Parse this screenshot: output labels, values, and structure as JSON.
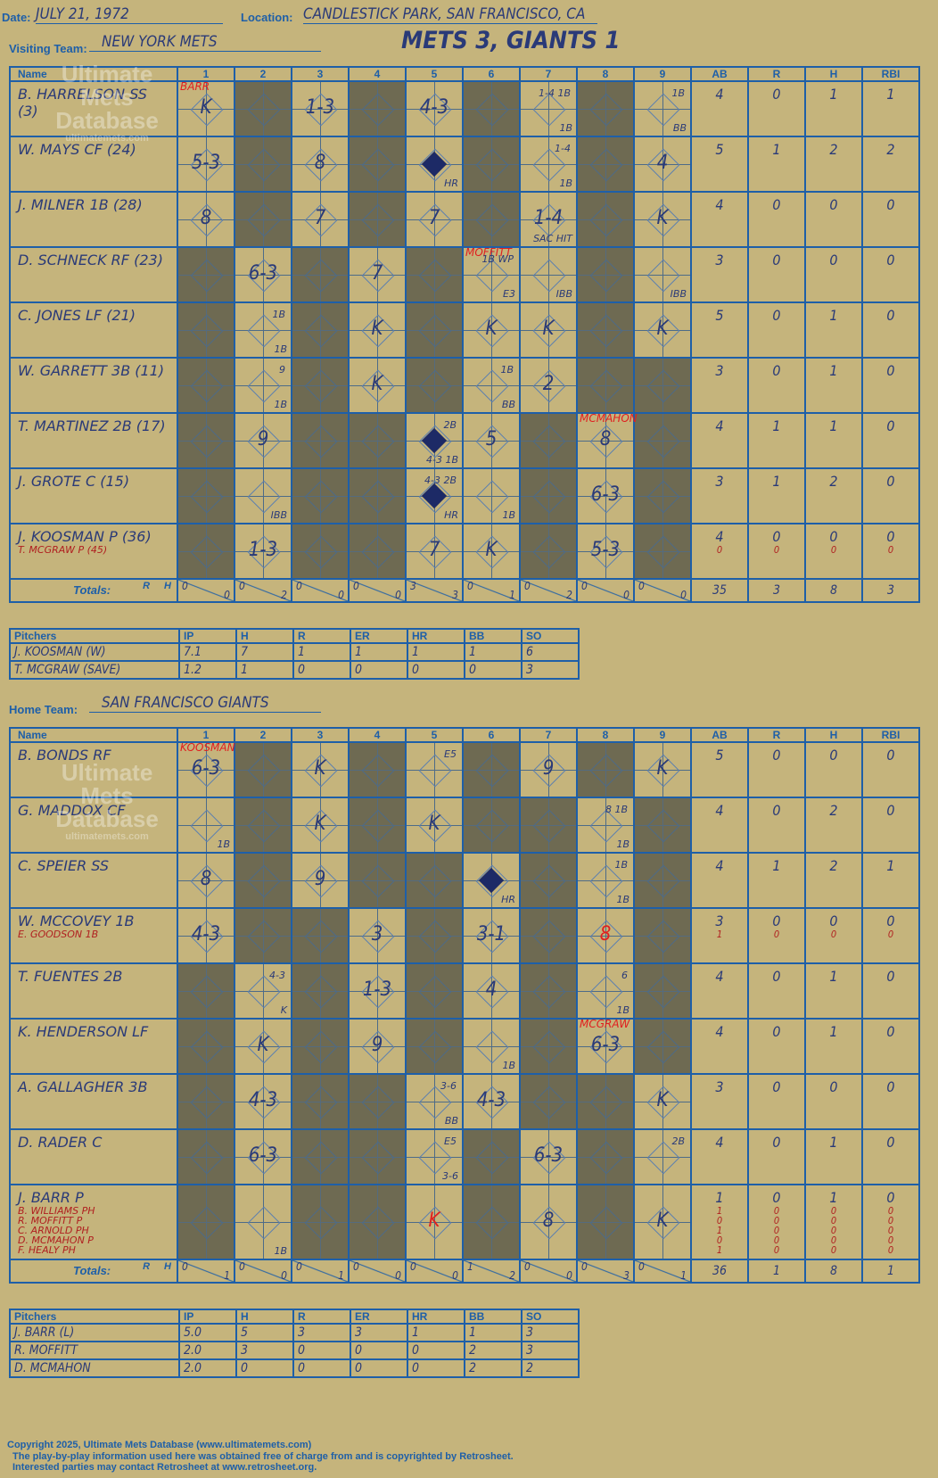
{
  "header": {
    "date_label": "Date:",
    "date": "JULY 21, 1972",
    "location_label": "Location:",
    "location": "CANDLESTICK PARK, SAN FRANCISCO, CA",
    "visiting_label": "Visiting Team:",
    "visiting_team": "NEW YORK METS",
    "score_title": "METS 3, GIANTS 1",
    "home_label": "Home Team:",
    "home_team": "SAN FRANCISCO GIANTS"
  },
  "columns": {
    "name": "Name",
    "innings": [
      "1",
      "2",
      "3",
      "4",
      "5",
      "6",
      "7",
      "8",
      "9"
    ],
    "stats": [
      "AB",
      "R",
      "H",
      "RBI"
    ]
  },
  "totals_label": "Totals:",
  "rh_labels": {
    "r": "R",
    "h": "H"
  },
  "visitors": {
    "batters": [
      {
        "name": "B. HARRELSON SS (3)",
        "sub": "",
        "stats": [
          "4",
          "0",
          "1",
          "1"
        ],
        "sub_stats": []
      },
      {
        "name": "W. MAYS CF (24)",
        "sub": "",
        "stats": [
          "5",
          "1",
          "2",
          "2"
        ],
        "sub_stats": []
      },
      {
        "name": "J. MILNER 1B (28)",
        "sub": "",
        "stats": [
          "4",
          "0",
          "0",
          "0"
        ],
        "sub_stats": []
      },
      {
        "name": "D. SCHNECK RF (23)",
        "sub": "",
        "stats": [
          "3",
          "0",
          "0",
          "0"
        ],
        "sub_stats": []
      },
      {
        "name": "C. JONES LF (21)",
        "sub": "",
        "stats": [
          "5",
          "0",
          "1",
          "0"
        ],
        "sub_stats": []
      },
      {
        "name": "W. GARRETT 3B (11)",
        "sub": "",
        "stats": [
          "3",
          "0",
          "1",
          "0"
        ],
        "sub_stats": []
      },
      {
        "name": "T. MARTINEZ 2B (17)",
        "sub": "",
        "stats": [
          "4",
          "1",
          "1",
          "0"
        ],
        "sub_stats": []
      },
      {
        "name": "J. GROTE C (15)",
        "sub": "",
        "stats": [
          "3",
          "1",
          "2",
          "0"
        ],
        "sub_stats": []
      },
      {
        "name": "J. KOOSMAN P (36)",
        "sub": "T. MCGRAW P (45)",
        "stats": [
          "4",
          "0",
          "0",
          "0"
        ],
        "sub_stats": [
          "0",
          "0",
          "0",
          "0"
        ]
      }
    ],
    "plays": [
      [
        {
          "m": "K",
          "n": "BARR"
        },
        {
          "d": 1
        },
        {
          "m": "1-3"
        },
        {
          "d": 1
        },
        {
          "m": "4-3"
        },
        {
          "d": 1
        },
        {
          "m": "",
          "t": "1-4 1B",
          "b": "1B"
        },
        {
          "d": 1
        },
        {
          "m": "",
          "t": "1B",
          "b": "BB"
        }
      ],
      [
        {
          "m": "5-3"
        },
        {
          "d": 1
        },
        {
          "m": "8"
        },
        {
          "d": 1
        },
        {
          "m": "",
          "run": 1,
          "b": "HR"
        },
        {
          "d": 1
        },
        {
          "m": "",
          "t": "1-4",
          "b": "1B"
        },
        {
          "d": 1
        },
        {
          "m": "4"
        }
      ],
      [
        {
          "m": "8"
        },
        {
          "d": 1
        },
        {
          "m": "7"
        },
        {
          "d": 1
        },
        {
          "m": "7"
        },
        {
          "d": 1
        },
        {
          "m": "1-4",
          "b": "SAC HIT"
        },
        {
          "d": 1
        },
        {
          "m": "K"
        }
      ],
      [
        {
          "d": 1
        },
        {
          "m": "6-3"
        },
        {
          "d": 1
        },
        {
          "m": "7"
        },
        {
          "d": 1
        },
        {
          "m": "",
          "n": "MOFFITT",
          "t": "1B WP",
          "b": "E3"
        },
        {
          "m": "",
          "b": "IBB"
        },
        {
          "d": 1
        },
        {
          "m": "",
          "b": "IBB"
        }
      ],
      [
        {
          "d": 1
        },
        {
          "m": "",
          "t": "1B",
          "b": "1B"
        },
        {
          "d": 1
        },
        {
          "m": "K"
        },
        {
          "d": 1
        },
        {
          "m": "K"
        },
        {
          "m": "K"
        },
        {
          "d": 1
        },
        {
          "m": "K"
        }
      ],
      [
        {
          "d": 1
        },
        {
          "m": "",
          "t": "9",
          "b": "1B"
        },
        {
          "d": 1
        },
        {
          "m": "K"
        },
        {
          "d": 1
        },
        {
          "m": "",
          "t": "1B",
          "b": "BB"
        },
        {
          "m": "2"
        },
        {
          "d": 1
        },
        {
          "d": 1
        }
      ],
      [
        {
          "d": 1
        },
        {
          "m": "9"
        },
        {
          "d": 1
        },
        {
          "d": 1
        },
        {
          "m": "",
          "run": 1,
          "t": "2B",
          "b": "4-3 1B"
        },
        {
          "m": "5"
        },
        {
          "d": 1
        },
        {
          "m": "8",
          "n": "MCMAHON"
        },
        {
          "d": 1
        }
      ],
      [
        {
          "d": 1
        },
        {
          "m": "",
          "b": "IBB"
        },
        {
          "d": 1
        },
        {
          "d": 1
        },
        {
          "m": "",
          "run": 1,
          "t": "4-3 2B",
          "b": "HR"
        },
        {
          "m": "",
          "b": "1B"
        },
        {
          "d": 1
        },
        {
          "m": "6-3"
        },
        {
          "d": 1
        }
      ],
      [
        {
          "d": 1
        },
        {
          "m": "1-3"
        },
        {
          "d": 1
        },
        {
          "d": 1
        },
        {
          "m": "7"
        },
        {
          "m": "K"
        },
        {
          "d": 1
        },
        {
          "m": "5-3"
        },
        {
          "d": 1
        }
      ]
    ],
    "totals_rh": [
      [
        "0",
        "0"
      ],
      [
        "0",
        "2"
      ],
      [
        "0",
        "0"
      ],
      [
        "0",
        "0"
      ],
      [
        "3",
        "3"
      ],
      [
        "0",
        "1"
      ],
      [
        "0",
        "2"
      ],
      [
        "0",
        "0"
      ],
      [
        "0",
        "0"
      ]
    ],
    "totals_stats": [
      "35",
      "3",
      "8",
      "3"
    ],
    "pitching": {
      "headers": [
        "Pitchers",
        "IP",
        "H",
        "R",
        "ER",
        "HR",
        "BB",
        "SO"
      ],
      "rows": [
        [
          "J. KOOSMAN (W)",
          "7.1",
          "7",
          "1",
          "1",
          "1",
          "1",
          "6"
        ],
        [
          "T. MCGRAW (SAVE)",
          "1.2",
          "1",
          "0",
          "0",
          "0",
          "0",
          "3"
        ]
      ]
    }
  },
  "home": {
    "batters": [
      {
        "name": "B. BONDS RF",
        "sub": "",
        "stats": [
          "5",
          "0",
          "0",
          "0"
        ],
        "sub_stats": []
      },
      {
        "name": "G. MADDOX CF",
        "sub": "",
        "stats": [
          "4",
          "0",
          "2",
          "0"
        ],
        "sub_stats": []
      },
      {
        "name": "C. SPEIER SS",
        "sub": "",
        "stats": [
          "4",
          "1",
          "2",
          "1"
        ],
        "sub_stats": []
      },
      {
        "name": "W. MCCOVEY 1B",
        "sub": "E. GOODSON 1B",
        "stats": [
          "3",
          "0",
          "0",
          "0"
        ],
        "sub_stats": [
          "1",
          "0",
          "0",
          "0"
        ]
      },
      {
        "name": "T. FUENTES 2B",
        "sub": "",
        "stats": [
          "4",
          "0",
          "1",
          "0"
        ],
        "sub_stats": []
      },
      {
        "name": "K. HENDERSON LF",
        "sub": "",
        "stats": [
          "4",
          "0",
          "1",
          "0"
        ],
        "sub_stats": []
      },
      {
        "name": "A. GALLAGHER 3B",
        "sub": "",
        "stats": [
          "3",
          "0",
          "0",
          "0"
        ],
        "sub_stats": []
      },
      {
        "name": "D. RADER C",
        "sub": "",
        "stats": [
          "4",
          "0",
          "1",
          "0"
        ],
        "sub_stats": []
      },
      {
        "name": "J. BARR P",
        "sub": "B. WILLIAMS PH / R. MOFFITT P / C. ARNOLD PH / D. MCMAHON P / F. HEALY PH",
        "stats": [
          "1",
          "0",
          "1",
          "0"
        ],
        "sub_stats": [
          "1 0 1 0 1",
          "0 0 0 0 0",
          "0 0 0 0 0",
          "0 0 0 0 0"
        ]
      }
    ],
    "plays": [
      [
        {
          "m": "6-3",
          "n": "KOOSMAN"
        },
        {
          "d": 1
        },
        {
          "m": "K"
        },
        {
          "d": 1
        },
        {
          "m": "",
          "t": "E5"
        },
        {
          "d": 1
        },
        {
          "m": "9"
        },
        {
          "d": 1
        },
        {
          "m": "K"
        }
      ],
      [
        {
          "m": "",
          "b": "1B"
        },
        {
          "d": 1
        },
        {
          "m": "K"
        },
        {
          "d": 1
        },
        {
          "m": "K"
        },
        {
          "d": 1
        },
        {
          "d": 1
        },
        {
          "m": "",
          "t": "8 1B",
          "b": "1B"
        },
        {
          "d": 1
        }
      ],
      [
        {
          "m": "8"
        },
        {
          "d": 1
        },
        {
          "m": "9"
        },
        {
          "d": 1
        },
        {
          "d": 1
        },
        {
          "m": "",
          "run": 1,
          "b": "HR"
        },
        {
          "d": 1
        },
        {
          "m": "",
          "t": "1B",
          "b": "1B"
        },
        {
          "d": 1
        }
      ],
      [
        {
          "m": "4-3"
        },
        {
          "d": 1
        },
        {
          "d": 1
        },
        {
          "m": "3"
        },
        {
          "d": 1
        },
        {
          "m": "3-1"
        },
        {
          "d": 1
        },
        {
          "m": "8",
          "red": 1
        },
        {
          "d": 1
        }
      ],
      [
        {
          "d": 1
        },
        {
          "m": "",
          "t": "4-3",
          "b": "K"
        },
        {
          "d": 1
        },
        {
          "m": "1-3"
        },
        {
          "d": 1
        },
        {
          "m": "4"
        },
        {
          "d": 1
        },
        {
          "m": "",
          "t": "6",
          "b": "1B"
        },
        {
          "d": 1
        }
      ],
      [
        {
          "d": 1
        },
        {
          "m": "K"
        },
        {
          "d": 1
        },
        {
          "m": "9"
        },
        {
          "d": 1
        },
        {
          "m": "",
          "b": "1B"
        },
        {
          "d": 1
        },
        {
          "m": "6-3",
          "n": "MCGRAW"
        },
        {
          "d": 1
        }
      ],
      [
        {
          "d": 1
        },
        {
          "m": "4-3"
        },
        {
          "d": 1
        },
        {
          "d": 1
        },
        {
          "m": "",
          "t": "3-6",
          "b": "BB"
        },
        {
          "m": "4-3"
        },
        {
          "d": 1
        },
        {
          "d": 1
        },
        {
          "m": "K"
        }
      ],
      [
        {
          "d": 1
        },
        {
          "m": "6-3"
        },
        {
          "d": 1
        },
        {
          "d": 1
        },
        {
          "m": "",
          "t": "E5",
          "b": "3-6"
        },
        {
          "d": 1
        },
        {
          "m": "6-3"
        },
        {
          "d": 1
        },
        {
          "m": "",
          "t": "2B"
        }
      ],
      [
        {
          "d": 1
        },
        {
          "m": "",
          "b": "1B"
        },
        {
          "d": 1
        },
        {
          "d": 1
        },
        {
          "m": "K",
          "red": 1
        },
        {
          "d": 1
        },
        {
          "m": "8"
        },
        {
          "d": 1
        },
        {
          "m": "K"
        }
      ]
    ],
    "totals_rh": [
      [
        "0",
        "1"
      ],
      [
        "0",
        "0"
      ],
      [
        "0",
        "1"
      ],
      [
        "0",
        "0"
      ],
      [
        "0",
        "0"
      ],
      [
        "1",
        "2"
      ],
      [
        "0",
        "0"
      ],
      [
        "0",
        "3"
      ],
      [
        "0",
        "1"
      ]
    ],
    "totals_stats": [
      "36",
      "1",
      "8",
      "1"
    ],
    "pitching": {
      "headers": [
        "Pitchers",
        "IP",
        "H",
        "R",
        "ER",
        "HR",
        "BB",
        "SO"
      ],
      "rows": [
        [
          "J. BARR (L)",
          "5.0",
          "5",
          "3",
          "3",
          "1",
          "1",
          "3"
        ],
        [
          "R. MOFFITT",
          "2.0",
          "3",
          "0",
          "0",
          "0",
          "2",
          "3"
        ],
        [
          "D. MCMAHON",
          "2.0",
          "0",
          "0",
          "0",
          "0",
          "2",
          "2"
        ]
      ]
    }
  },
  "watermark": {
    "line1": "Ultimate",
    "line2": "Mets",
    "line3": "Database",
    "line4": "ultimatemets.com"
  },
  "footer": {
    "line1": "Copyright 2025, Ultimate Mets Database (www.ultimatemets.com)",
    "line2": "The play-by-play information used here was obtained free of charge from and is copyrighted by Retrosheet.",
    "line3": "Interested parties may contact Retrosheet at www.retrosheet.org."
  },
  "colors": {
    "background": "#c5b47c",
    "grid": "#1e5fa8",
    "dark_cell": "#6e6a52",
    "ink": "#2a3a78",
    "red": "#e02020"
  }
}
